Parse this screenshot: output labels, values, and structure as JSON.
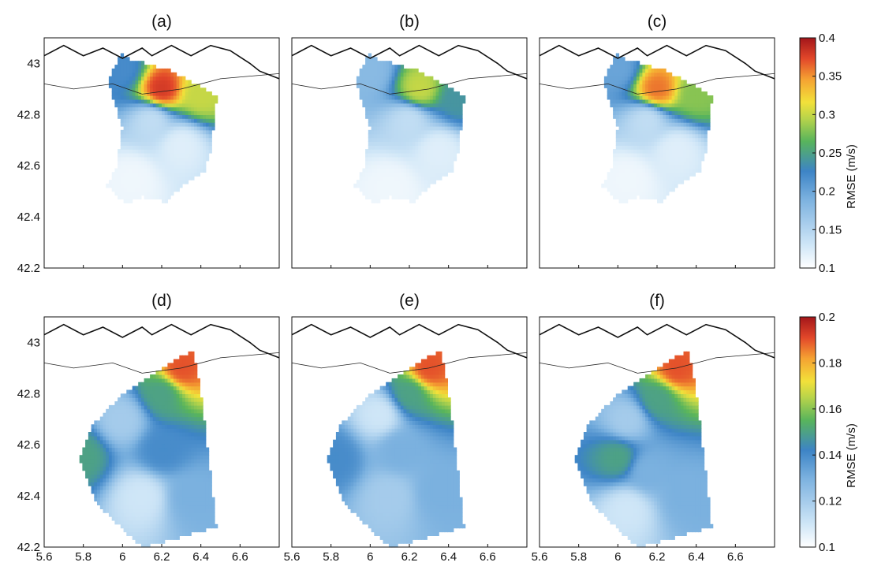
{
  "chart_data": [
    {
      "type": "heatmap",
      "panel": "(a)",
      "title": "(a)",
      "xlim": [
        5.6,
        6.8
      ],
      "ylim": [
        42.2,
        43.1
      ],
      "yticks": [
        "42.2",
        "42.4",
        "42.6",
        "42.8",
        "43"
      ],
      "colorbar": {
        "min": 0.1,
        "max": 0.4,
        "label": "RMSE (m/s)",
        "ticks": [
          "0.1",
          "0.15",
          "0.2",
          "0.25",
          "0.3",
          "0.35",
          "0.4"
        ]
      },
      "series": [
        {
          "values": [
            [
              6.0,
              42.98,
              0.22
            ],
            [
              6.2,
              42.9,
              0.38
            ],
            [
              6.4,
              42.88,
              0.3
            ],
            [
              6.15,
              42.78,
              0.14
            ],
            [
              6.3,
              42.68,
              0.12
            ],
            [
              6.05,
              42.55,
              0.11
            ]
          ]
        }
      ]
    },
    {
      "type": "heatmap",
      "panel": "(b)",
      "title": "(b)",
      "xlim": [
        5.6,
        6.8
      ],
      "ylim": [
        42.2,
        43.1
      ],
      "colorbar": {
        "min": 0.1,
        "max": 0.4,
        "label": "RMSE (m/s)"
      },
      "series": [
        {
          "values": [
            [
              6.0,
              42.97,
              0.18
            ],
            [
              6.25,
              42.9,
              0.3
            ],
            [
              6.45,
              42.86,
              0.24
            ],
            [
              6.2,
              42.78,
              0.14
            ],
            [
              6.35,
              42.66,
              0.12
            ],
            [
              6.1,
              42.52,
              0.11
            ]
          ]
        }
      ]
    },
    {
      "type": "heatmap",
      "panel": "(c)",
      "title": "(c)",
      "xlim": [
        5.6,
        6.8
      ],
      "ylim": [
        42.2,
        43.1
      ],
      "colorbar": {
        "min": 0.1,
        "max": 0.4,
        "label": "RMSE (m/s)"
      },
      "series": [
        {
          "values": [
            [
              6.0,
              42.98,
              0.2
            ],
            [
              6.2,
              42.9,
              0.36
            ],
            [
              6.4,
              42.88,
              0.28
            ],
            [
              6.15,
              42.78,
              0.14
            ],
            [
              6.3,
              42.66,
              0.12
            ],
            [
              6.05,
              42.55,
              0.11
            ]
          ]
        }
      ]
    },
    {
      "type": "heatmap",
      "panel": "(d)",
      "title": "(d)",
      "xlim": [
        5.6,
        6.8
      ],
      "ylim": [
        42.2,
        43.1
      ],
      "xticks": [
        "5.6",
        "5.8",
        "6",
        "6.2",
        "6.4",
        "6.6"
      ],
      "yticks": [
        "42.2",
        "42.4",
        "42.6",
        "42.8",
        "43"
      ],
      "colorbar": {
        "min": 0.1,
        "max": 0.2,
        "label": "RMSE (m/s)",
        "ticks": [
          "0.1",
          "0.12",
          "0.14",
          "0.16",
          "0.18",
          "0.2"
        ]
      },
      "series": [
        {
          "values": [
            [
              6.3,
              42.9,
              0.19
            ],
            [
              6.2,
              42.8,
              0.15
            ],
            [
              6.0,
              42.7,
              0.12
            ],
            [
              6.2,
              42.58,
              0.14
            ],
            [
              5.8,
              42.56,
              0.15
            ],
            [
              6.1,
              42.4,
              0.11
            ],
            [
              6.35,
              42.4,
              0.13
            ]
          ]
        }
      ]
    },
    {
      "type": "heatmap",
      "panel": "(e)",
      "title": "(e)",
      "xlim": [
        5.6,
        6.8
      ],
      "ylim": [
        42.2,
        43.1
      ],
      "xticks": [
        "5.6",
        "5.8",
        "6",
        "6.2",
        "6.4",
        "6.6"
      ],
      "colorbar": {
        "min": 0.1,
        "max": 0.2,
        "label": "RMSE (m/s)"
      },
      "series": [
        {
          "values": [
            [
              6.3,
              42.9,
              0.19
            ],
            [
              6.2,
              42.8,
              0.15
            ],
            [
              6.05,
              42.72,
              0.11
            ],
            [
              6.15,
              42.58,
              0.13
            ],
            [
              5.82,
              42.55,
              0.14
            ],
            [
              6.1,
              42.4,
              0.12
            ],
            [
              6.35,
              42.42,
              0.13
            ]
          ]
        }
      ]
    },
    {
      "type": "heatmap",
      "panel": "(f)",
      "title": "(f)",
      "xlim": [
        5.6,
        6.8
      ],
      "ylim": [
        42.2,
        43.1
      ],
      "xticks": [
        "5.6",
        "5.8",
        "6",
        "6.2",
        "6.4",
        "6.6"
      ],
      "colorbar": {
        "min": 0.1,
        "max": 0.2,
        "label": "RMSE (m/s)"
      },
      "series": [
        {
          "values": [
            [
              6.3,
              42.9,
              0.19
            ],
            [
              6.2,
              42.78,
              0.15
            ],
            [
              6.05,
              42.7,
              0.12
            ],
            [
              6.0,
              42.55,
              0.15
            ],
            [
              6.15,
              42.5,
              0.13
            ],
            [
              6.05,
              42.35,
              0.11
            ],
            [
              6.35,
              42.4,
              0.13
            ]
          ]
        }
      ]
    }
  ]
}
